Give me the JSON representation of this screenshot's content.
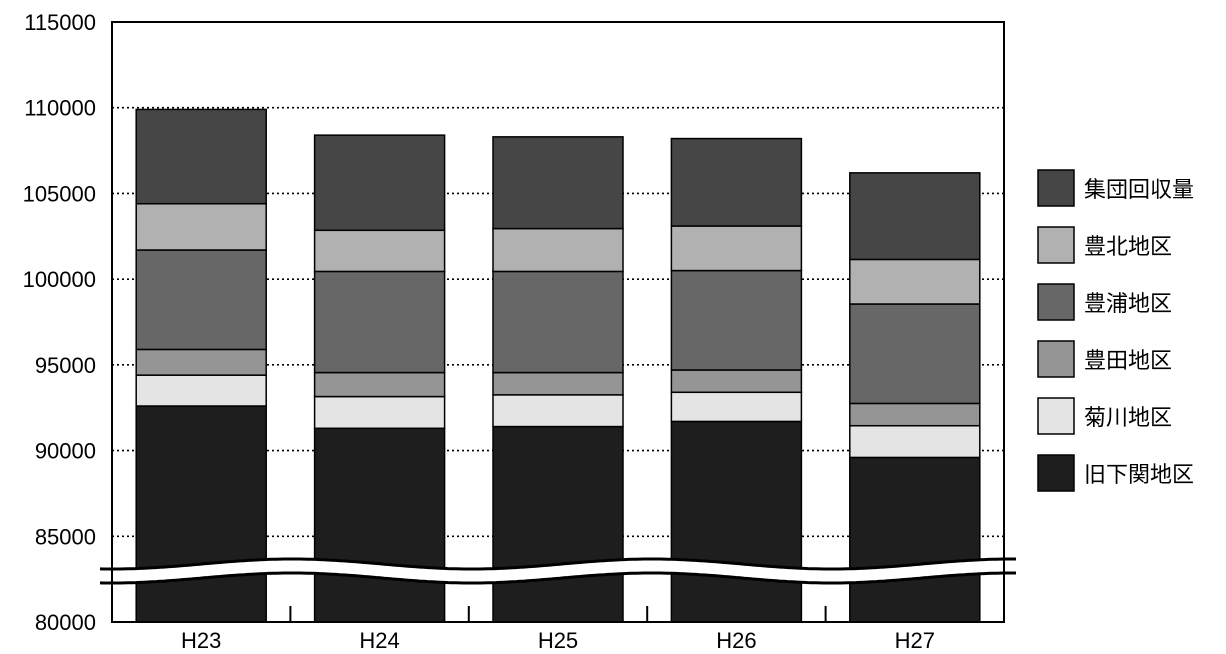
{
  "chart_data": {
    "type": "bar",
    "stacked": true,
    "categories": [
      "H23",
      "H24",
      "H25",
      "H26",
      "H27"
    ],
    "series": [
      {
        "name": "旧下関地区",
        "color": "#1e1e1e",
        "values": [
          92600,
          91300,
          91400,
          91700,
          89600
        ]
      },
      {
        "name": "菊川地区",
        "color": "#e4e4e4",
        "values": [
          1800,
          1850,
          1850,
          1700,
          1850
        ]
      },
      {
        "name": "豊田地区",
        "color": "#959595",
        "values": [
          1500,
          1400,
          1300,
          1300,
          1300
        ]
      },
      {
        "name": "豊浦地区",
        "color": "#676767",
        "values": [
          5800,
          5900,
          5900,
          5800,
          5800
        ]
      },
      {
        "name": "豊北地区",
        "color": "#b1b1b1",
        "values": [
          2700,
          2400,
          2500,
          2600,
          2600
        ]
      },
      {
        "name": "集団回収量",
        "color": "#464646",
        "values": [
          5500,
          5550,
          5350,
          5100,
          5050
        ]
      }
    ],
    "ylim": [
      80000,
      115000
    ],
    "yticks": [
      80000,
      85000,
      90000,
      95000,
      100000,
      105000,
      110000,
      115000
    ],
    "axis_break": true,
    "grid": "dotted horizontal",
    "legend": "right",
    "title": "",
    "xlabel": "",
    "ylabel": ""
  }
}
